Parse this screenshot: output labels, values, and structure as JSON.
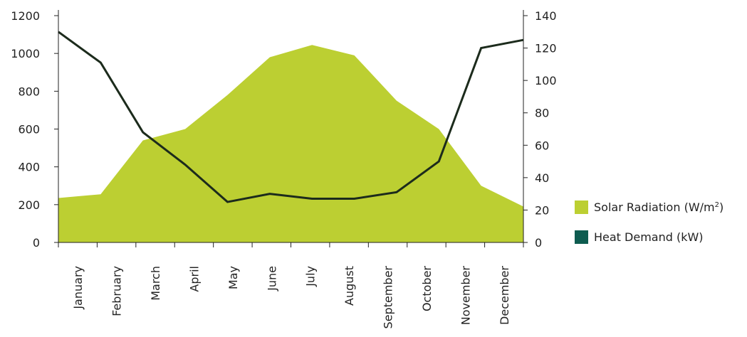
{
  "chart_data": {
    "type": "area",
    "categories": [
      "January",
      "February",
      "March",
      "April",
      "May",
      "June",
      "July",
      "August",
      "September",
      "October",
      "November",
      "December"
    ],
    "series": [
      {
        "name": "Solar Radiation (W/m²)",
        "type": "area",
        "axis": "left",
        "color": "#bccf32",
        "x": [
          0,
          1,
          2,
          3,
          4,
          5,
          6,
          7,
          8,
          9,
          10,
          11
        ],
        "values": [
          235,
          255,
          540,
          600,
          780,
          980,
          1045,
          990,
          750,
          600,
          300,
          190
        ]
      },
      {
        "name": "Heat Demand (kW)",
        "type": "line",
        "axis": "right",
        "color": "#1c2b1c",
        "x": [
          0,
          1,
          2,
          3,
          4,
          5,
          6,
          7,
          8,
          9,
          10,
          11
        ],
        "values": [
          130,
          111,
          68,
          48,
          25,
          30,
          27,
          27,
          31,
          50,
          120,
          125
        ]
      }
    ],
    "y_left": {
      "ylim": [
        0,
        1200
      ],
      "ticks": [
        0,
        200,
        400,
        600,
        800,
        1000,
        1200
      ]
    },
    "y_right": {
      "ylim": [
        0,
        140
      ],
      "ticks": [
        0,
        20,
        40,
        60,
        80,
        100,
        120,
        140
      ]
    },
    "legend": {
      "placement": "right",
      "items": [
        {
          "label_main": "Solar Radiation (W/m",
          "label_sup": "2",
          "label_end": ")",
          "color": "#bccf32"
        },
        {
          "label_main": "Heat Demand (kW)",
          "label_sup": "",
          "label_end": "",
          "color": "#0e5c50"
        }
      ]
    },
    "grid": false
  }
}
